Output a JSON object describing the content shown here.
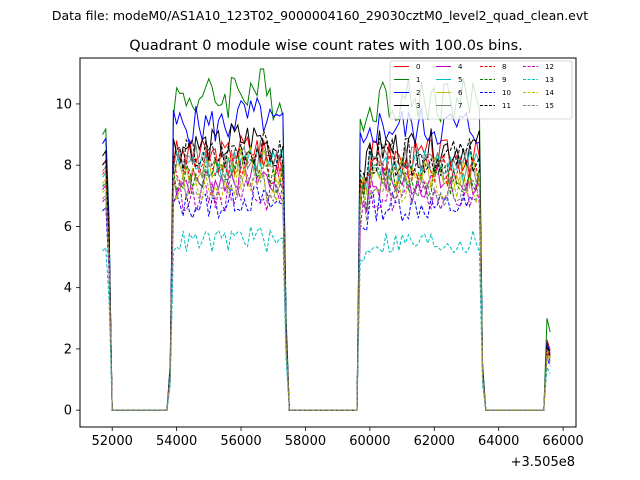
{
  "chart_data": {
    "type": "line",
    "suptitle": "Data file: modeM0/AS1A10_123T02_9000004160_29030cztM0_level2_quad_clean.evt",
    "title": "Quadrant 0 module wise count rates with 100.0s bins.",
    "xlabel": "",
    "ylabel": "",
    "x_offset_label": "+3.505e8",
    "xlim": [
      51000,
      66400
    ],
    "ylim": [
      -0.55,
      11.5
    ],
    "x_ticks": [
      {
        "value": 52000,
        "label": "52000"
      },
      {
        "value": 54000,
        "label": "54000"
      },
      {
        "value": 56000,
        "label": "56000"
      },
      {
        "value": 58000,
        "label": "58000"
      },
      {
        "value": 60000,
        "label": "60000"
      },
      {
        "value": 62000,
        "label": "62000"
      },
      {
        "value": 64000,
        "label": "64000"
      },
      {
        "value": 66000,
        "label": "66000"
      }
    ],
    "y_ticks": [
      {
        "value": 0,
        "label": "0"
      },
      {
        "value": 2,
        "label": "2"
      },
      {
        "value": 4,
        "label": "4"
      },
      {
        "value": 6,
        "label": "6"
      },
      {
        "value": 8,
        "label": "8"
      },
      {
        "value": 10,
        "label": "10"
      }
    ],
    "legend": {
      "placement": "top-right",
      "columns": 4
    },
    "bin_width": 100,
    "segments": [
      {
        "x_start": 51700,
        "x_end": 51900,
        "shape": "edge"
      },
      {
        "x_start": 53900,
        "x_end": 57300,
        "shape": "plateau"
      },
      {
        "x_start": 59700,
        "x_end": 63400,
        "shape": "plateau"
      },
      {
        "x_start": 65500,
        "x_end": 65600,
        "shape": "tail"
      }
    ],
    "zero_gaps": [
      [
        52000,
        53700
      ],
      [
        57400,
        59600
      ],
      [
        63500,
        65400
      ]
    ],
    "series": [
      {
        "name": "0",
        "color": "#ff0000",
        "dashed": false,
        "level": 8.3,
        "start": 8.0,
        "end_val": 2.3
      },
      {
        "name": "1",
        "color": "#008000",
        "dashed": false,
        "level": 10.2,
        "start": 9.0,
        "end_val": 3.0
      },
      {
        "name": "2",
        "color": "#0000ff",
        "dashed": false,
        "level": 9.3,
        "start": 8.7,
        "end_val": 2.2
      },
      {
        "name": "3",
        "color": "#000000",
        "dashed": false,
        "level": 8.6,
        "start": 8.3,
        "end_val": 2.1
      },
      {
        "name": "4",
        "color": "#bf00bf",
        "dashed": false,
        "level": 7.5,
        "start": 7.2,
        "end_val": 1.9
      },
      {
        "name": "5",
        "color": "#00bfbf",
        "dashed": false,
        "level": 8.0,
        "start": 7.6,
        "end_val": 2.0
      },
      {
        "name": "6",
        "color": "#bfbf00",
        "dashed": false,
        "level": 7.8,
        "start": 7.4,
        "end_val": 2.0
      },
      {
        "name": "7",
        "color": "#808080",
        "dashed": false,
        "level": 8.1,
        "start": 7.8,
        "end_val": 2.1
      },
      {
        "name": "8",
        "color": "#ff0000",
        "dashed": true,
        "level": 7.9,
        "start": 7.7,
        "end_val": 2.0
      },
      {
        "name": "9",
        "color": "#008000",
        "dashed": true,
        "level": 7.6,
        "start": 7.3,
        "end_val": 1.9
      },
      {
        "name": "10",
        "color": "#0000ff",
        "dashed": true,
        "level": 6.7,
        "start": 6.5,
        "end_val": 1.7
      },
      {
        "name": "11",
        "color": "#000000",
        "dashed": true,
        "level": 8.3,
        "start": 8.0,
        "end_val": 2.1
      },
      {
        "name": "12",
        "color": "#bf00bf",
        "dashed": true,
        "level": 7.0,
        "start": 6.8,
        "end_val": 1.8
      },
      {
        "name": "13",
        "color": "#00bfbf",
        "dashed": true,
        "level": 5.5,
        "start": 5.2,
        "end_val": 1.4
      },
      {
        "name": "14",
        "color": "#bfbf00",
        "dashed": true,
        "level": 7.3,
        "start": 7.1,
        "end_val": 1.9
      },
      {
        "name": "15",
        "color": "#808080",
        "dashed": true,
        "level": 7.2,
        "start": 6.9,
        "end_val": 1.8
      }
    ]
  }
}
